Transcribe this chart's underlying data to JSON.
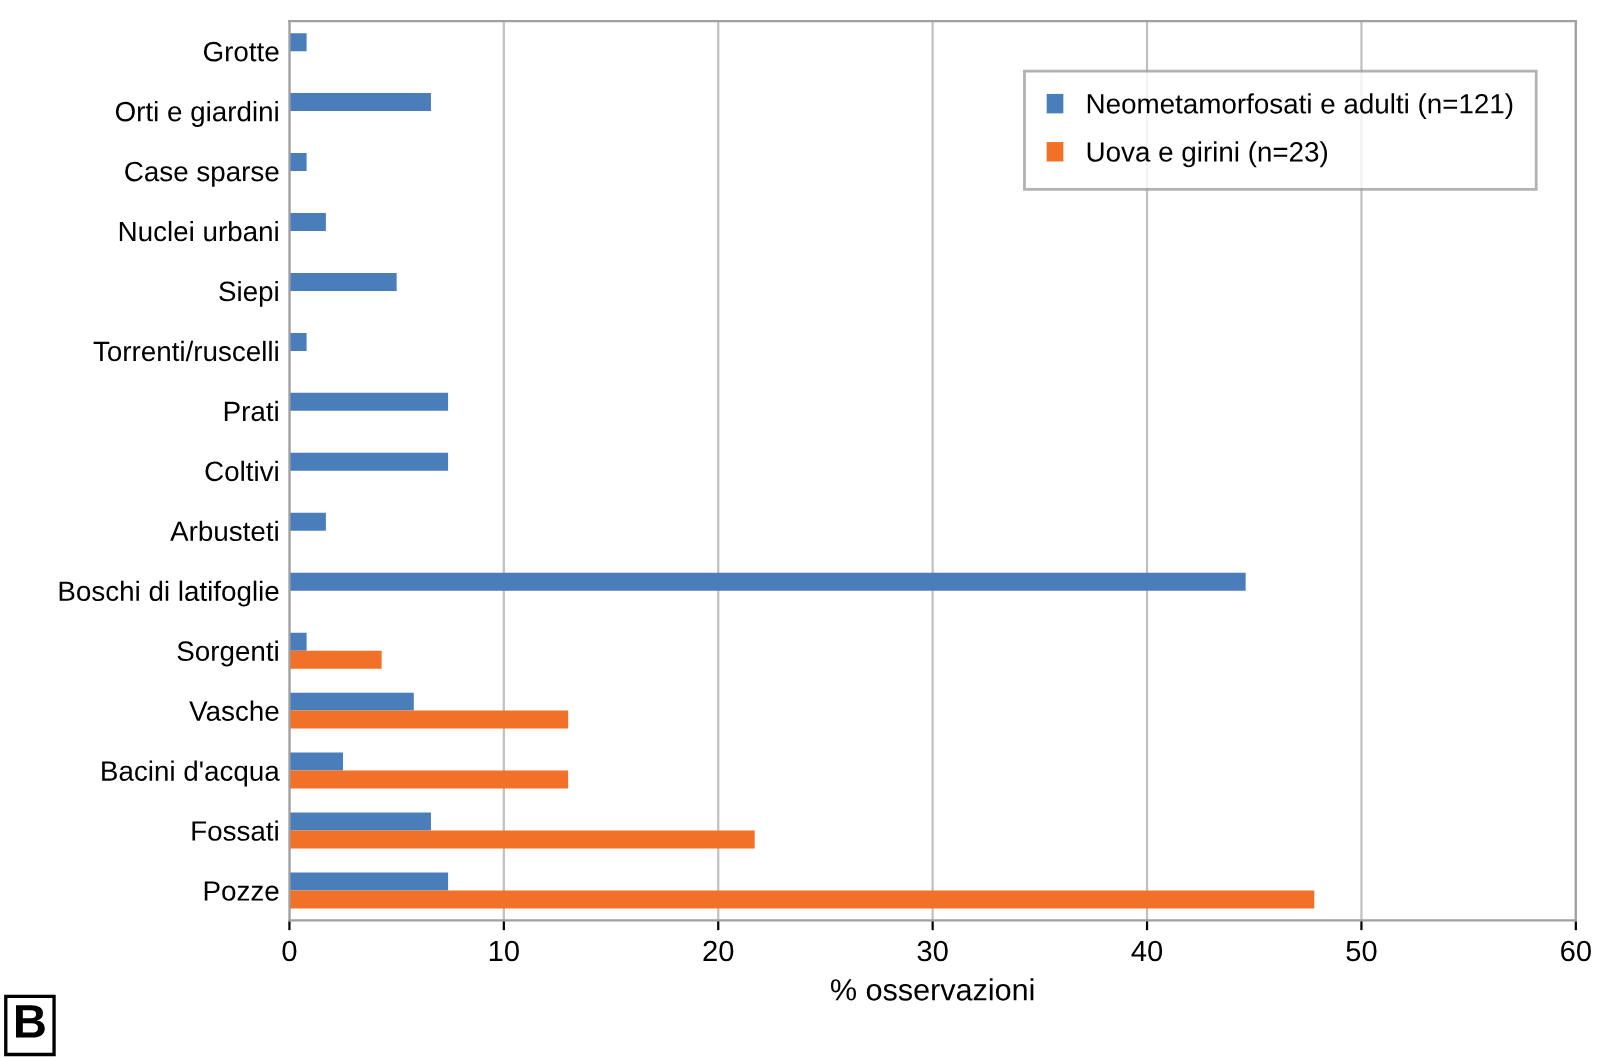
{
  "chart_data": {
    "type": "bar",
    "orientation": "horizontal",
    "xlabel": "% osservazioni",
    "categories": [
      "Grotte",
      "Orti e giardini",
      "Case sparse",
      "Nuclei urbani",
      "Siepi",
      "Torrenti/ruscelli",
      "Prati",
      "Coltivi",
      "Arbusteti",
      "Boschi di latifoglie",
      "Sorgenti",
      "Vasche",
      "Bacini d'acqua",
      "Fossati",
      "Pozze"
    ],
    "series": [
      {
        "name": "Neometamorfosati e adulti (n=121)",
        "color": "#4a7ebb",
        "values": [
          0.8,
          6.6,
          0.8,
          1.7,
          5.0,
          0.8,
          7.4,
          7.4,
          1.7,
          44.6,
          0.8,
          5.8,
          2.5,
          6.6,
          7.4
        ]
      },
      {
        "name": "Uova e girini (n=23)",
        "color": "#f07127",
        "values": [
          null,
          null,
          null,
          null,
          null,
          null,
          null,
          null,
          null,
          null,
          4.3,
          13.0,
          13.0,
          21.7,
          47.8
        ]
      }
    ],
    "xlim": [
      0,
      60
    ],
    "xticks": [
      0,
      10,
      20,
      30,
      40,
      50,
      60
    ],
    "grid": "x",
    "legend": "top right",
    "annotations": [
      "B"
    ]
  }
}
